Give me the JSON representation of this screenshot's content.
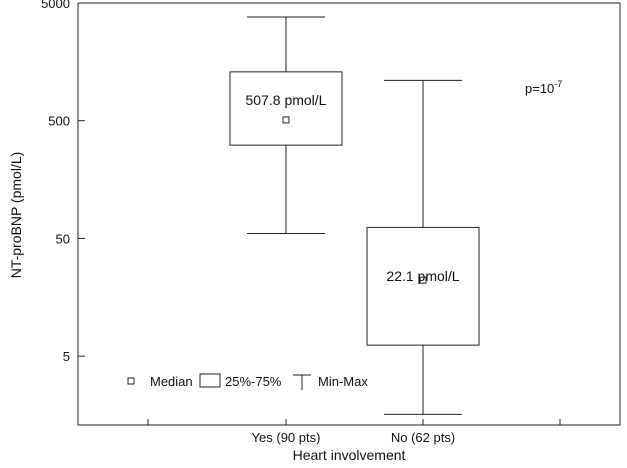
{
  "chart_data": {
    "type": "box",
    "xlabel": "Heart involvement",
    "ylabel": "NT-proBNP (pmol/L)",
    "y_scale": "log",
    "ylim": [
      1.3,
      5000
    ],
    "yticks": [
      5,
      50,
      500,
      5000
    ],
    "ytick_labels": [
      "5",
      "50",
      "500",
      "5000"
    ],
    "grid": false,
    "categories": [
      "Yes (90 pts)",
      "No (62 pts)"
    ],
    "boxes": [
      {
        "category": "Yes (90 pts)",
        "min": 55,
        "q1": 310,
        "median": 507.8,
        "q3": 1300,
        "max": 3800,
        "median_label": "507.8 pmol/L"
      },
      {
        "category": "No (62 pts)",
        "min": 1.6,
        "q1": 6.2,
        "median": 22.1,
        "q3": 62,
        "max": 1100,
        "median_label": "22.1 pmol/L"
      }
    ],
    "annotation": {
      "base": "p=10",
      "exponent": "-7"
    },
    "legend": {
      "position": "bottom-left",
      "items": [
        {
          "symbol": "median-square",
          "label": "Median"
        },
        {
          "symbol": "box",
          "label": "25%-75%"
        },
        {
          "symbol": "whisker",
          "label": "Min-Max"
        }
      ]
    }
  }
}
